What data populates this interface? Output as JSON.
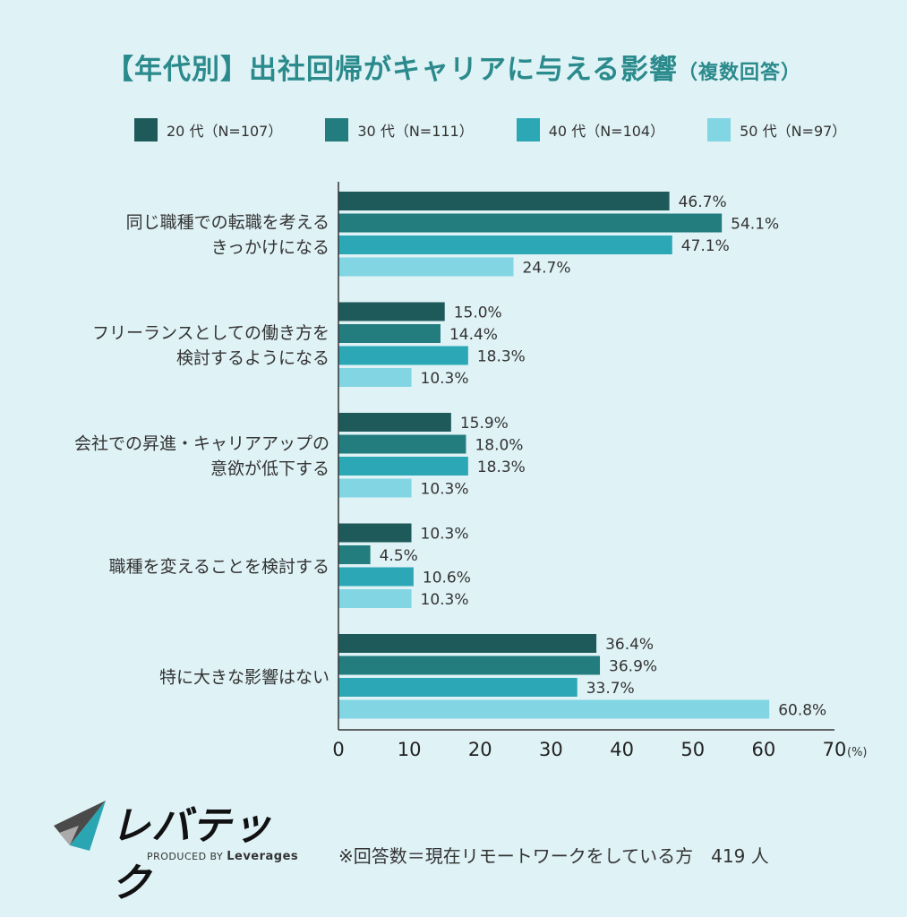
{
  "page": {
    "title_main": "【年代別】出社回帰がキャリアに与える影響",
    "title_sub": "（複数回答）",
    "footnote": "※回答数＝現在リモートワークをしている方　419 人"
  },
  "logo": {
    "name": "レバテック",
    "produced_by": "PRODUCED BY",
    "company": "Leverages",
    "icon": "leverages-arrow-logo"
  },
  "colors": {
    "background": "#dff2f6",
    "title": "#2a8a8c",
    "series": [
      "#1e5a5a",
      "#237c7e",
      "#2ba7b5",
      "#82d5e2"
    ]
  },
  "chart_data": {
    "type": "bar",
    "orientation": "horizontal",
    "categories": [
      [
        "同じ職種での転職を考える",
        "きっかけになる"
      ],
      [
        "フリーランスとしての働き方を",
        "検討するようになる"
      ],
      [
        "会社での昇進・キャリアアップの",
        "意欲が低下する"
      ],
      [
        "職種を変えることを検討する"
      ],
      [
        "特に大きな影響はない"
      ]
    ],
    "series": [
      {
        "name": "20 代（N=107）",
        "values": [
          46.7,
          15.0,
          15.9,
          10.3,
          36.4
        ]
      },
      {
        "name": "30 代（N=111）",
        "values": [
          54.1,
          14.4,
          18.0,
          4.5,
          36.9
        ]
      },
      {
        "name": "40 代（N=104）",
        "values": [
          47.1,
          18.3,
          18.3,
          10.6,
          33.7
        ]
      },
      {
        "name": "50 代（N=97）",
        "values": [
          24.7,
          10.3,
          10.3,
          10.3,
          60.8
        ]
      }
    ],
    "value_suffix": "%",
    "xlim": [
      0,
      70
    ],
    "xticks": [
      0,
      10,
      20,
      30,
      40,
      50,
      60,
      70
    ],
    "x_unit_label": "(%)",
    "legend_position": "top",
    "grid": false
  }
}
